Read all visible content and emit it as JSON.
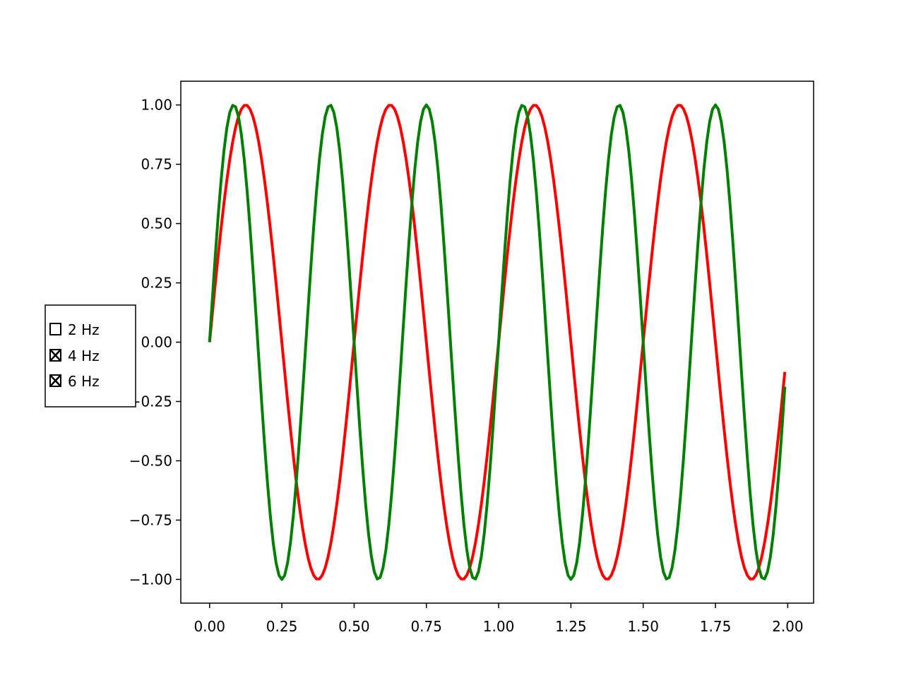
{
  "chart_data": {
    "type": "line",
    "title": "",
    "xlabel": "",
    "ylabel": "",
    "xlim": [
      -0.0995,
      2.0895
    ],
    "ylim": [
      -1.1,
      1.1
    ],
    "grid": false,
    "x_samples": {
      "start": 0,
      "stop": 1.99,
      "step": 0.01
    },
    "xticks": [
      0.0,
      0.25,
      0.5,
      0.75,
      1.0,
      1.25,
      1.5,
      1.75,
      2.0
    ],
    "xtick_labels": [
      "0.00",
      "0.25",
      "0.50",
      "0.75",
      "1.00",
      "1.25",
      "1.50",
      "1.75",
      "2.00"
    ],
    "yticks": [
      -1.0,
      -0.75,
      -0.5,
      -0.25,
      0.0,
      0.25,
      0.5,
      0.75,
      1.0
    ],
    "ytick_labels": [
      "−1.00",
      "−0.75",
      "−0.50",
      "−0.25",
      "0.00",
      "0.25",
      "0.50",
      "0.75",
      "1.00"
    ],
    "series": [
      {
        "name": "2 Hz",
        "function": "sin(2πt)",
        "angular_coefficient": 2,
        "color": "#000000",
        "visible": false
      },
      {
        "name": "4 Hz",
        "function": "sin(4πt)",
        "angular_coefficient": 4,
        "color": "#ff0000",
        "visible": true
      },
      {
        "name": "6 Hz",
        "function": "sin(6πt)",
        "angular_coefficient": 6,
        "color": "#008000",
        "visible": true
      }
    ]
  },
  "check_buttons": [
    {
      "label": "2 Hz",
      "checked": false
    },
    {
      "label": "4 Hz",
      "checked": true
    },
    {
      "label": "6 Hz",
      "checked": true
    }
  ]
}
